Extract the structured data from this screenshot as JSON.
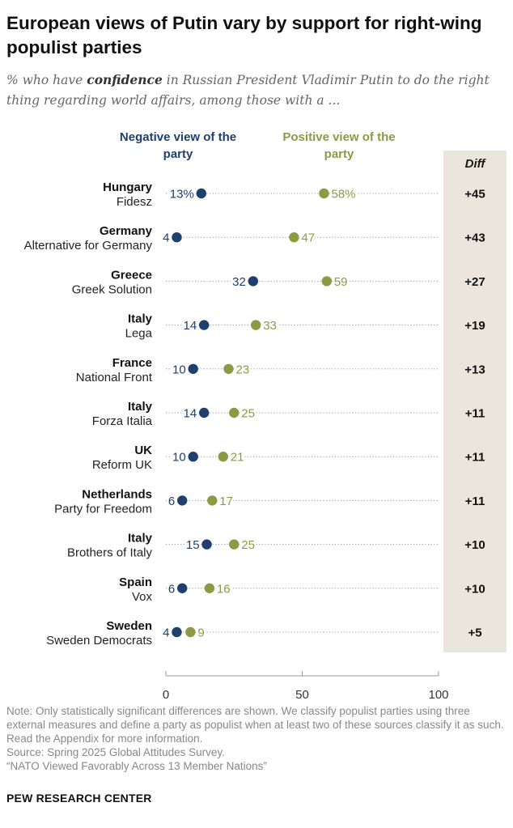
{
  "title": "European views of Putin vary by support for right-wing populist parties",
  "subtitle": {
    "before": "% who have ",
    "emphasis": "confidence",
    "after": " in Russian President Vladimir Putin to do the right thing regarding world affairs, among those with a ..."
  },
  "colors": {
    "negative": "#1f3f6e",
    "positive": "#8c9a44",
    "diff_panel": "#eae6dc"
  },
  "chart_data": {
    "type": "dot",
    "title": "European views of Putin vary by support for right-wing populist parties",
    "series": [
      {
        "name": "Negative view of the party",
        "key": "neg"
      },
      {
        "name": "Positive view of the party",
        "key": "pos"
      }
    ],
    "legend": {
      "negative": "Negative view of the party",
      "positive": "Positive view of the party"
    },
    "diff_label": "Diff",
    "xlim": [
      0,
      100
    ],
    "xticks": [
      0,
      50,
      100
    ],
    "rows": [
      {
        "country": "Hungary",
        "party": "Fidesz",
        "neg": 13,
        "pos": 58,
        "neg_label": "13%",
        "pos_label": "58%",
        "diff": "+45"
      },
      {
        "country": "Germany",
        "party": "Alternative for Germany",
        "neg": 4,
        "pos": 47,
        "neg_label": "4",
        "pos_label": "47",
        "diff": "+43"
      },
      {
        "country": "Greece",
        "party": "Greek Solution",
        "neg": 32,
        "pos": 59,
        "neg_label": "32",
        "pos_label": "59",
        "diff": "+27"
      },
      {
        "country": "Italy",
        "party": "Lega",
        "neg": 14,
        "pos": 33,
        "neg_label": "14",
        "pos_label": "33",
        "diff": "+19"
      },
      {
        "country": "France",
        "party": "National Front",
        "neg": 10,
        "pos": 23,
        "neg_label": "10",
        "pos_label": "23",
        "diff": "+13"
      },
      {
        "country": "Italy",
        "party": "Forza Italia",
        "neg": 14,
        "pos": 25,
        "neg_label": "14",
        "pos_label": "25",
        "diff": "+11"
      },
      {
        "country": "UK",
        "party": "Reform UK",
        "neg": 10,
        "pos": 21,
        "neg_label": "10",
        "pos_label": "21",
        "diff": "+11"
      },
      {
        "country": "Netherlands",
        "party": "Party for Freedom",
        "neg": 6,
        "pos": 17,
        "neg_label": "6",
        "pos_label": "17",
        "diff": "+11"
      },
      {
        "country": "Italy",
        "party": "Brothers of Italy",
        "neg": 15,
        "pos": 25,
        "neg_label": "15",
        "pos_label": "25",
        "diff": "+10"
      },
      {
        "country": "Spain",
        "party": "Vox",
        "neg": 6,
        "pos": 16,
        "neg_label": "6",
        "pos_label": "16",
        "diff": "+10"
      },
      {
        "country": "Sweden",
        "party": "Sweden Democrats",
        "neg": 4,
        "pos": 9,
        "neg_label": "4",
        "pos_label": "9",
        "diff": "+5"
      }
    ]
  },
  "notes": {
    "note": "Note: Only statistically significant differences are shown. We classify populist parties using three external measures and define a party as populist when at least two of these sources classify it as such. Read the Appendix for more information.",
    "source": "Source: Spring 2025 Global Attitudes Survey.",
    "report": "“NATO Viewed Favorably Across 13 Member Nations”"
  },
  "brand": "PEW RESEARCH CENTER"
}
